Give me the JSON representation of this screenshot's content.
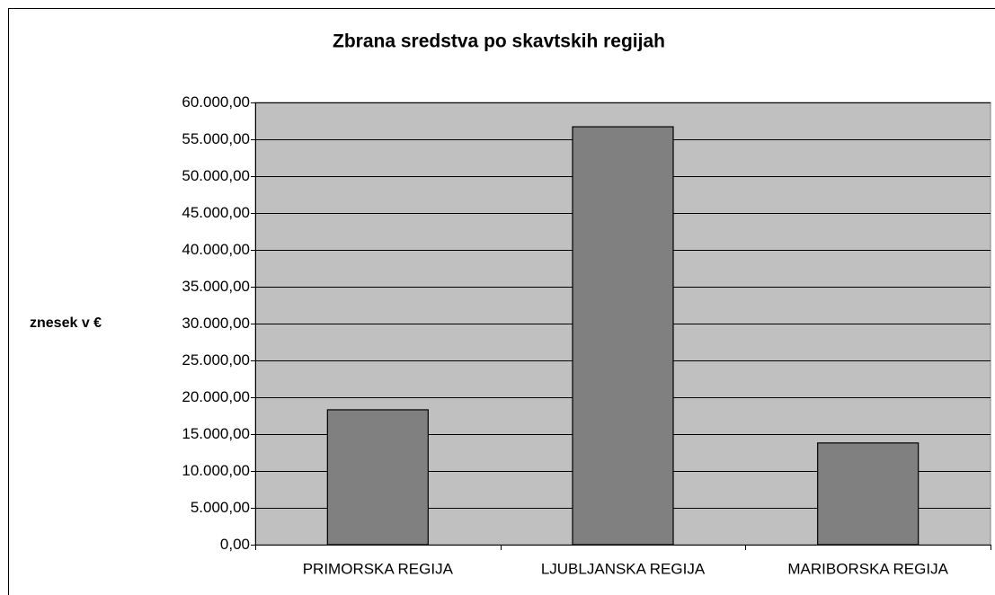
{
  "chart_data": {
    "type": "bar",
    "title": "Zbrana sredstva po skavtskih regijah",
    "y_label": "znesek v €",
    "categories": [
      "PRIMORSKA REGIJA",
      "LJUBLJANSKA REGIJA",
      "MARIBORSKA REGIJA"
    ],
    "values": [
      18300,
      56700,
      13800
    ],
    "color": "#808080",
    "plot_background": "#c0c0c0",
    "ylim": [
      0,
      60000
    ],
    "yticks": [
      {
        "value": 0,
        "label": "0,00"
      },
      {
        "value": 5000,
        "label": "5.000,00"
      },
      {
        "value": 10000,
        "label": "10.000,00"
      },
      {
        "value": 15000,
        "label": "15.000,00"
      },
      {
        "value": 20000,
        "label": "20.000,00"
      },
      {
        "value": 25000,
        "label": "25.000,00"
      },
      {
        "value": 30000,
        "label": "30.000,00"
      },
      {
        "value": 35000,
        "label": "35.000,00"
      },
      {
        "value": 40000,
        "label": "40.000,00"
      },
      {
        "value": 45000,
        "label": "45.000,00"
      },
      {
        "value": 50000,
        "label": "50.000,00"
      },
      {
        "value": 55000,
        "label": "55.000,00"
      },
      {
        "value": 60000,
        "label": "60.000,00"
      }
    ],
    "grid": true
  }
}
